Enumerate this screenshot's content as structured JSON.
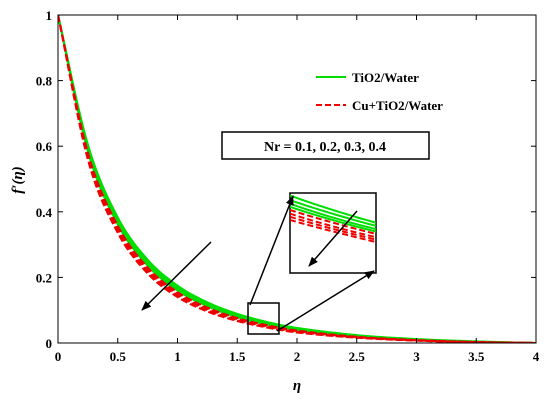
{
  "chart_data": {
    "type": "line",
    "xlabel": "η",
    "ylabel": "f′(η)",
    "xlim": [
      0,
      4
    ],
    "ylim": [
      0,
      1
    ],
    "xticks": [
      0,
      0.5,
      1,
      1.5,
      2,
      2.5,
      3,
      3.5,
      4
    ],
    "xtick_labels": [
      "0",
      "0.5",
      "1",
      "1.5",
      "2",
      "2.5",
      "3",
      "3.5",
      "4"
    ],
    "yticks": [
      0,
      0.2,
      0.4,
      0.6,
      0.8,
      1
    ],
    "ytick_labels": [
      "0",
      "0.2",
      "0.4",
      "0.6",
      "0.8",
      "1"
    ],
    "grid": false,
    "legend_position": "top-right",
    "annotation": "Nr = 0.1, 0.2, 0.3, 0.4",
    "series": [
      {
        "name": "TiO2/Water",
        "style": "solid",
        "color": "#00dd00",
        "param": "Nr = 0.1",
        "x": [
          0,
          0.25,
          0.5,
          0.75,
          1,
          1.25,
          1.5,
          1.75,
          2,
          2.5,
          3,
          3.5,
          4
        ],
        "y": [
          1.0,
          0.605,
          0.383,
          0.254,
          0.175,
          0.124,
          0.089,
          0.064,
          0.046,
          0.024,
          0.012,
          0.005,
          0.0
        ]
      },
      {
        "name": "TiO2/Water",
        "style": "solid",
        "color": "#00dd00",
        "param": "Nr = 0.2",
        "x": [
          0,
          0.25,
          0.5,
          0.75,
          1,
          1.25,
          1.5,
          1.75,
          2,
          2.5,
          3,
          3.5,
          4
        ],
        "y": [
          1.0,
          0.598,
          0.376,
          0.248,
          0.17,
          0.12,
          0.085,
          0.061,
          0.044,
          0.022,
          0.011,
          0.004,
          0.0
        ]
      },
      {
        "name": "TiO2/Water",
        "style": "solid",
        "color": "#00dd00",
        "param": "Nr = 0.3",
        "x": [
          0,
          0.25,
          0.5,
          0.75,
          1,
          1.25,
          1.5,
          1.75,
          2,
          2.5,
          3,
          3.5,
          4
        ],
        "y": [
          1.0,
          0.591,
          0.369,
          0.242,
          0.165,
          0.116,
          0.082,
          0.058,
          0.042,
          0.021,
          0.01,
          0.004,
          0.0
        ]
      },
      {
        "name": "TiO2/Water",
        "style": "solid",
        "color": "#00dd00",
        "param": "Nr = 0.4",
        "x": [
          0,
          0.25,
          0.5,
          0.75,
          1,
          1.25,
          1.5,
          1.75,
          2,
          2.5,
          3,
          3.5,
          4
        ],
        "y": [
          1.0,
          0.584,
          0.362,
          0.236,
          0.16,
          0.112,
          0.079,
          0.056,
          0.04,
          0.02,
          0.009,
          0.003,
          0.0
        ]
      },
      {
        "name": "Cu+TiO2/Water",
        "style": "dashed",
        "color": "#ee0000",
        "param": "Nr = 0.1",
        "x": [
          0,
          0.25,
          0.5,
          0.75,
          1,
          1.25,
          1.5,
          1.75,
          2,
          2.5,
          3,
          3.5,
          4
        ],
        "y": [
          1.0,
          0.58,
          0.357,
          0.23,
          0.155,
          0.108,
          0.076,
          0.054,
          0.038,
          0.019,
          0.009,
          0.003,
          0.0
        ]
      },
      {
        "name": "Cu+TiO2/Water",
        "style": "dashed",
        "color": "#ee0000",
        "param": "Nr = 0.2",
        "x": [
          0,
          0.25,
          0.5,
          0.75,
          1,
          1.25,
          1.5,
          1.75,
          2,
          2.5,
          3,
          3.5,
          4
        ],
        "y": [
          1.0,
          0.573,
          0.35,
          0.224,
          0.15,
          0.104,
          0.073,
          0.051,
          0.036,
          0.018,
          0.008,
          0.003,
          0.0
        ]
      },
      {
        "name": "Cu+TiO2/Water",
        "style": "dashed",
        "color": "#ee0000",
        "param": "Nr = 0.3",
        "x": [
          0,
          0.25,
          0.5,
          0.75,
          1,
          1.25,
          1.5,
          1.75,
          2,
          2.5,
          3,
          3.5,
          4
        ],
        "y": [
          1.0,
          0.566,
          0.343,
          0.218,
          0.145,
          0.1,
          0.07,
          0.049,
          0.034,
          0.017,
          0.008,
          0.002,
          0.0
        ]
      },
      {
        "name": "Cu+TiO2/Water",
        "style": "dashed",
        "color": "#ee0000",
        "param": "Nr = 0.4",
        "x": [
          0,
          0.25,
          0.5,
          0.75,
          1,
          1.25,
          1.5,
          1.75,
          2,
          2.5,
          3,
          3.5,
          4
        ],
        "y": [
          1.0,
          0.559,
          0.336,
          0.212,
          0.14,
          0.096,
          0.067,
          0.047,
          0.032,
          0.016,
          0.007,
          0.002,
          0.0
        ]
      }
    ],
    "legend": [
      {
        "label": "TiO2/Water",
        "style": "solid",
        "color": "#00dd00"
      },
      {
        "label": "Cu+TiO2/Water",
        "style": "dashed",
        "color": "#ee0000"
      }
    ],
    "zoom_region": {
      "x": [
        1.6,
        1.85
      ],
      "y": [
        0.015,
        0.08
      ]
    }
  }
}
